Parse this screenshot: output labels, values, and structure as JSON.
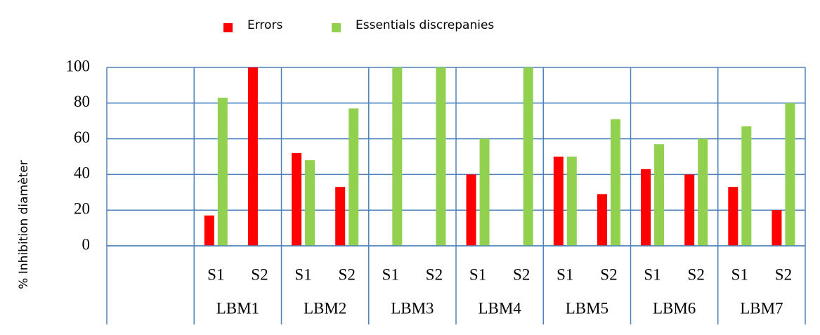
{
  "chart_data": {
    "type": "bar",
    "y_label": "% Inhibition diamèter",
    "groups": [
      null,
      "LBM1",
      "LBM2",
      "LBM3",
      "LBM4",
      "LBM5",
      "LBM6",
      "LBM7"
    ],
    "categories": [
      null,
      null,
      "S1",
      "S2",
      "S1",
      "S2",
      "S1",
      "S2",
      "S1",
      "S2",
      "S1",
      "S2",
      "S1",
      "S2",
      "S1",
      "S2"
    ],
    "series": [
      {
        "name": "Errors",
        "color": "#ff0000",
        "values": [
          null,
          null,
          17,
          100,
          52,
          33,
          0,
          0,
          40,
          0,
          50,
          29,
          43,
          40,
          33,
          20
        ]
      },
      {
        "name": "Essentials discrepanies",
        "color": "#92d050",
        "values": [
          null,
          null,
          83,
          0,
          48,
          77,
          100,
          100,
          60,
          100,
          50,
          71,
          57,
          60,
          67,
          80
        ]
      }
    ],
    "ylim": [
      0,
      100
    ],
    "yticks": [
      0,
      20,
      40,
      60,
      80,
      100
    ],
    "grid": true,
    "legend": "top"
  }
}
